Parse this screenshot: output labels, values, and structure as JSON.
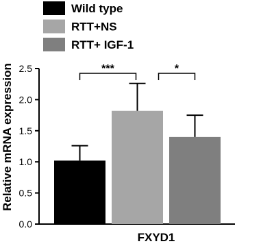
{
  "chart_data": {
    "type": "bar",
    "y_label": "Relative mRNA expression",
    "categories": [
      "FXYD1"
    ],
    "series": [
      {
        "name": "Wild type",
        "color": "#000000",
        "values": [
          1.02
        ],
        "errors": [
          0.24
        ]
      },
      {
        "name": "RTT+NS",
        "color": "#a6a6a6",
        "values": [
          1.82
        ],
        "errors": [
          0.44
        ]
      },
      {
        "name": "RTT+ IGF-1",
        "color": "#7f7f7f",
        "values": [
          1.4
        ],
        "errors": [
          0.35
        ]
      }
    ],
    "ylim": [
      0,
      2.5
    ],
    "yticks": [
      {
        "value": 0,
        "label": "0.0"
      },
      0.5,
      {
        "value": 1,
        "label": "1.0"
      },
      1.5,
      {
        "value": 2,
        "label": "2.0"
      },
      2.5
    ],
    "annotations": [
      {
        "text": "***"
      },
      {
        "text": "*"
      }
    ],
    "legend": "top-left"
  }
}
